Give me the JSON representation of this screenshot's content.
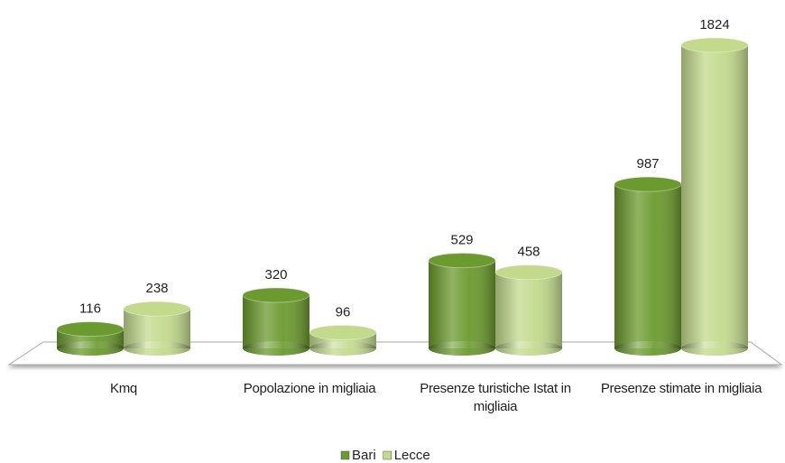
{
  "chart_data": {
    "type": "bar3d",
    "categories": [
      "Kmq",
      "Popolazione in migliaia",
      "Presenze turistiche Istat in migliaia",
      "Presenze stimate in migliaia"
    ],
    "series": [
      {
        "name": "Bari",
        "color": "#6b9a2e",
        "values": [
          116,
          320,
          529,
          987
        ]
      },
      {
        "name": "Lecce",
        "color": "#c3da8d",
        "values": [
          238,
          96,
          458,
          1824
        ]
      }
    ],
    "legend": "bottom"
  }
}
